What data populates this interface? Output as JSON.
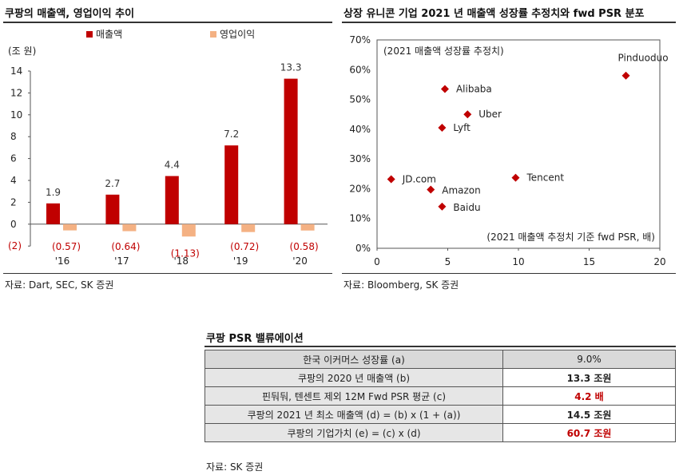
{
  "bar_chart": {
    "title": "쿠팡의 매출액, 영업이익 추이",
    "unit": "(조 원)",
    "source": "자료: Dart, SEC, SK 증권",
    "legend": [
      "매출액",
      "영업이익"
    ],
    "colors": {
      "revenue": "#c00000",
      "op_income": "#f4b183"
    },
    "y_ticks": [
      "14",
      "12",
      "10",
      "8",
      "6",
      "4",
      "2",
      "0",
      "(2)"
    ],
    "revenue_labels": [
      "1.9",
      "2.7",
      "4.4",
      "7.2",
      "13.3"
    ],
    "op_income_labels": [
      "(0.57)",
      "(0.64)",
      "(1.13)",
      "(0.72)",
      "(0.58)"
    ]
  },
  "scatter_chart": {
    "title": "상장 유니콘 기업 2021 년 매출액 성장률 추정치와 fwd PSR 분포",
    "y_title": "(2021 매출액 성장률 추정치)",
    "x_title": "(2021 매출액 추정치 기준 fwd PSR, 배)",
    "source": "자료: Bloomberg, SK 증권",
    "color": "#c00000",
    "x_ticks": [
      "0",
      "5",
      "10",
      "15",
      "20"
    ],
    "y_ticks": [
      "70%",
      "60%",
      "50%",
      "40%",
      "30%",
      "20%",
      "10%",
      "0%"
    ]
  },
  "chart_data": [
    {
      "type": "bar",
      "title": "쿠팡의 매출액, 영업이익 추이",
      "ylabel": "(조 원)",
      "categories": [
        "'16",
        "'17",
        "'18",
        "'19",
        "'20"
      ],
      "series": [
        {
          "name": "매출액",
          "values": [
            1.9,
            2.7,
            4.4,
            7.2,
            13.3
          ]
        },
        {
          "name": "영업이익",
          "values": [
            -0.57,
            -0.64,
            -1.13,
            -0.72,
            -0.58
          ]
        }
      ],
      "ylim": [
        -2,
        14
      ],
      "legend": "top"
    },
    {
      "type": "scatter",
      "title": "상장 유니콘 기업 2021 년 매출액 성장률 추정치와 fwd PSR 분포",
      "xlabel": "(2021 매출액 추정치 기준 fwd PSR, 배)",
      "ylabel": "(2021 매출액 성장률 추정치)",
      "xlim": [
        0,
        20
      ],
      "ylim": [
        0,
        0.7
      ],
      "points": [
        {
          "label": "Pinduoduo",
          "x": 17.6,
          "y": 0.58
        },
        {
          "label": "Alibaba",
          "x": 4.8,
          "y": 0.535
        },
        {
          "label": "Uber",
          "x": 6.4,
          "y": 0.45
        },
        {
          "label": "Lyft",
          "x": 4.6,
          "y": 0.405
        },
        {
          "label": "JD.com",
          "x": 1.0,
          "y": 0.232
        },
        {
          "label": "Tencent",
          "x": 9.8,
          "y": 0.237
        },
        {
          "label": "Amazon",
          "x": 3.8,
          "y": 0.197
        },
        {
          "label": "Baidu",
          "x": 4.6,
          "y": 0.14
        }
      ]
    }
  ],
  "valuation": {
    "title": "쿠팡 PSR 밸류에이션",
    "source": "자료: SK 증권",
    "rows": [
      {
        "label": "한국 이커머스 성장률 (a)",
        "value": "9.0%"
      },
      {
        "label": "쿠팡의 2020 년 매출액 (b)",
        "value": "13.3 조원"
      },
      {
        "label": "핀둬둬, 텐센트 제외 12M Fwd PSR 평균 (c)",
        "value": "4.2 배"
      },
      {
        "label": "쿠팡의 2021 년 최소 매출액 (d) = (b) x (1 + (a))",
        "value": "14.5 조원"
      },
      {
        "label": "쿠팡의 기업가치 (e) = (c) x (d)",
        "value": "60.7 조원"
      }
    ]
  }
}
